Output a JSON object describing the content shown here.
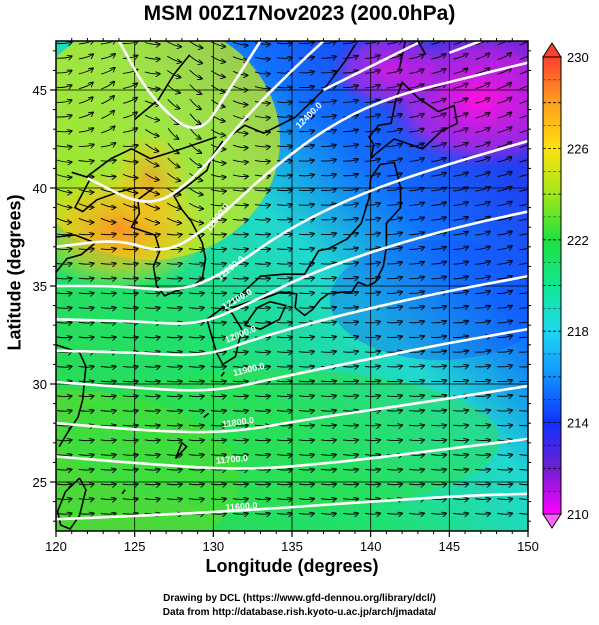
{
  "title": "MSM 00Z17Nov2023 (200.0hPa)",
  "axes": {
    "xlabel": "Longitude (degrees)",
    "ylabel": "Latitude  (degrees)",
    "x_range": [
      120,
      150
    ],
    "y_range": [
      22.5,
      47.5
    ],
    "x_ticks": [
      "120",
      "125",
      "130",
      "135",
      "140",
      "145",
      "150"
    ],
    "y_ticks": [
      "25",
      "30",
      "35",
      "40",
      "45"
    ]
  },
  "colorbar": {
    "min": 210,
    "max": 230,
    "labels": [
      "230",
      "226",
      "222",
      "218",
      "214",
      "210"
    ],
    "colors": [
      "#ff00ff",
      "#5020d0",
      "#1040ff",
      "#20c0ff",
      "#10e8b0",
      "#10d860",
      "#60e020",
      "#c8e818",
      "#ffd010",
      "#ff9020",
      "#ff5030"
    ]
  },
  "contours": {
    "color": "#ffffff",
    "labels": [
      "11600.0",
      "11700.0",
      "11800.0",
      "11900.0",
      "12000.0",
      "12100.0",
      "12200.0",
      "12300.0",
      "12400.0"
    ]
  },
  "features": {
    "wind_vectors": "black-arrows",
    "coastline": "black"
  },
  "credits": {
    "line1": "Drawing by DCL (https://www.gfd-dennou.org/library/dcl/)",
    "line2": "Data from http://database.rish.kyoto-u.ac.jp/arch/jmadata/"
  }
}
